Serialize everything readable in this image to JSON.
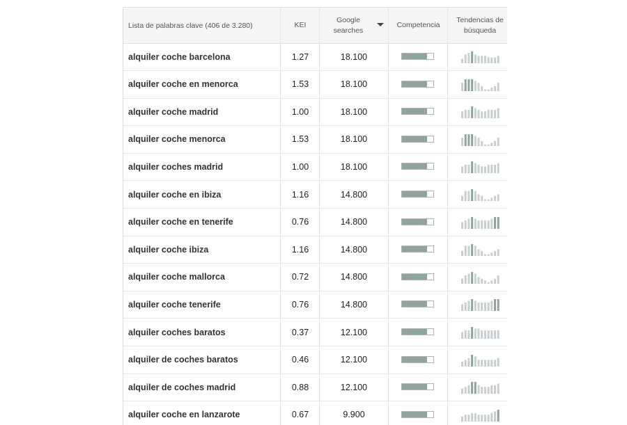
{
  "table": {
    "headers": {
      "keyword": "Lista de palabras clave (406 de 3.280)",
      "kei": "KEI",
      "searches_line1": "Google",
      "searches_line2": "searches",
      "competition": "Competencia",
      "trends_line1": "Tendencias de",
      "trends_line2": "búsqueda"
    },
    "sort_icon": "triangle-down-icon",
    "colors": {
      "competition_fill": "#8fa3a0",
      "trend_light": "#c8d0cf",
      "trend_dark": "#8fa3a0"
    },
    "rows": [
      {
        "keyword": "alquiler coche barcelona",
        "kei": "1.27",
        "searches": "18.100",
        "competition": 0.8,
        "trend": [
          3,
          6,
          7,
          8,
          6,
          5,
          5,
          5,
          4,
          4,
          4,
          5
        ]
      },
      {
        "keyword": "alquiler coche en menorca",
        "kei": "1.53",
        "searches": "18.100",
        "competition": 0.8,
        "trend": [
          5,
          7,
          7,
          7,
          6,
          5,
          3,
          1,
          1,
          2,
          3,
          5
        ]
      },
      {
        "keyword": "alquiler coche madrid",
        "kei": "1.00",
        "searches": "18.100",
        "competition": 0.8,
        "trend": [
          4,
          5,
          5,
          7,
          6,
          5,
          4,
          4,
          5,
          5,
          5,
          6
        ]
      },
      {
        "keyword": "alquiler coche menorca",
        "kei": "1.53",
        "searches": "18.100",
        "competition": 0.8,
        "trend": [
          5,
          7,
          7,
          7,
          6,
          5,
          3,
          1,
          1,
          2,
          3,
          5
        ]
      },
      {
        "keyword": "alquiler coches madrid",
        "kei": "1.00",
        "searches": "18.100",
        "competition": 0.8,
        "trend": [
          4,
          5,
          5,
          7,
          6,
          5,
          4,
          4,
          5,
          5,
          5,
          6
        ]
      },
      {
        "keyword": "alquiler coche en ibiza",
        "kei": "1.16",
        "searches": "14.800",
        "competition": 0.8,
        "trend": [
          3,
          6,
          6,
          7,
          6,
          4,
          3,
          1,
          1,
          2,
          3,
          4
        ]
      },
      {
        "keyword": "alquiler coche en tenerife",
        "kei": "0.76",
        "searches": "14.800",
        "competition": 0.8,
        "trend": [
          4,
          5,
          6,
          7,
          6,
          5,
          5,
          5,
          5,
          6,
          7,
          7
        ]
      },
      {
        "keyword": "alquiler coche ibiza",
        "kei": "1.16",
        "searches": "14.800",
        "competition": 0.8,
        "trend": [
          3,
          6,
          6,
          7,
          6,
          4,
          3,
          1,
          1,
          2,
          3,
          4
        ]
      },
      {
        "keyword": "alquiler coche mallorca",
        "kei": "0.72",
        "searches": "14.800",
        "competition": 0.8,
        "trend": [
          3,
          5,
          6,
          7,
          6,
          4,
          3,
          2,
          1,
          2,
          3,
          5
        ]
      },
      {
        "keyword": "alquiler coche tenerife",
        "kei": "0.76",
        "searches": "14.800",
        "competition": 0.8,
        "trend": [
          4,
          5,
          6,
          7,
          6,
          5,
          5,
          5,
          5,
          6,
          7,
          7
        ]
      },
      {
        "keyword": "alquiler coches baratos",
        "kei": "0.37",
        "searches": "12.100",
        "competition": 0.8,
        "trend": [
          4,
          5,
          5,
          7,
          6,
          6,
          5,
          5,
          5,
          5,
          5,
          5
        ]
      },
      {
        "keyword": "alquiler de coches baratos",
        "kei": "0.46",
        "searches": "12.100",
        "competition": 0.8,
        "trend": [
          3,
          4,
          5,
          7,
          6,
          4,
          4,
          4,
          4,
          4,
          4,
          5
        ]
      },
      {
        "keyword": "alquiler de coches madrid",
        "kei": "0.88",
        "searches": "12.100",
        "competition": 0.8,
        "trend": [
          3,
          4,
          5,
          7,
          7,
          5,
          4,
          4,
          4,
          5,
          5,
          6
        ]
      },
      {
        "keyword": "alquiler coche en lanzarote",
        "kei": "0.67",
        "searches": "9.900",
        "competition": 0.8,
        "trend": [
          3,
          4,
          4,
          5,
          5,
          4,
          4,
          4,
          4,
          5,
          6,
          7
        ]
      }
    ]
  }
}
